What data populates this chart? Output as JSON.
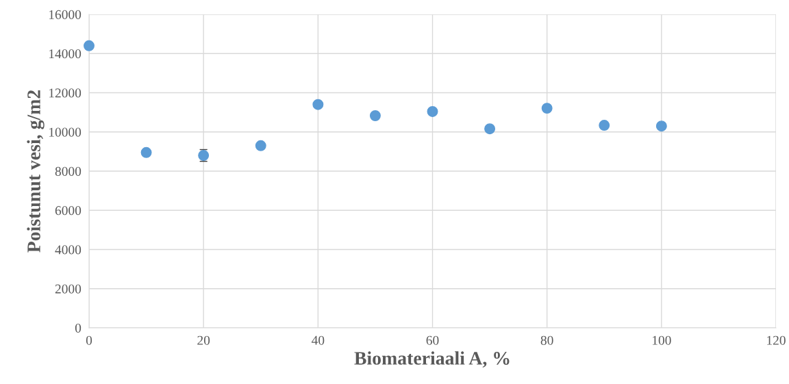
{
  "chart_data": {
    "type": "scatter",
    "xlabel": "Biomateriaali A, %",
    "ylabel": "Poistunut vesi, g/m2",
    "x": [
      0,
      10,
      20,
      30,
      40,
      50,
      60,
      70,
      80,
      90,
      100
    ],
    "values": [
      14400,
      8950,
      8800,
      9300,
      11400,
      10830,
      11040,
      10160,
      11210,
      10340,
      10300
    ],
    "errors": [
      null,
      null,
      300,
      null,
      null,
      null,
      null,
      null,
      null,
      null,
      null
    ],
    "color": "#5b9bd5",
    "marker": "circle",
    "grid": true,
    "legend": false,
    "xlim": [
      0,
      120
    ],
    "xticks": [
      0,
      20,
      40,
      60,
      80,
      100,
      120
    ],
    "ylim": [
      0,
      16000
    ],
    "yticks": [
      0,
      2000,
      4000,
      6000,
      8000,
      10000,
      12000,
      14000,
      16000
    ]
  }
}
